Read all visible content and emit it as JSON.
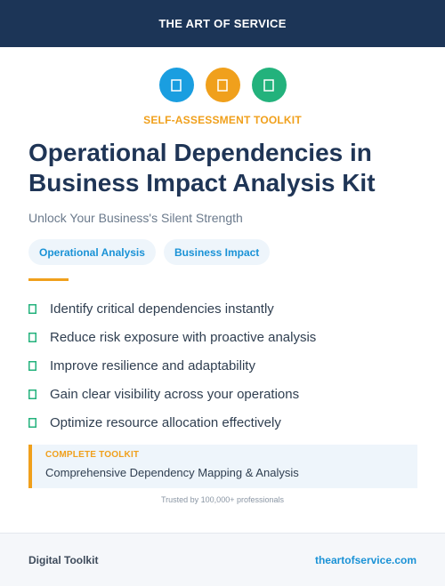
{
  "header": {
    "brand": "THE ART OF SERVICE"
  },
  "icons": [
    {
      "name": "document-icon",
      "color": "#1a9ee0"
    },
    {
      "name": "document-icon",
      "color": "#f0a01c"
    },
    {
      "name": "document-icon",
      "color": "#23b27c"
    }
  ],
  "kicker": "SELF-ASSESSMENT TOOLKIT",
  "title_line1": "Operational Dependencies in",
  "title_line2": "Business Impact Analysis Kit",
  "subtitle": "Unlock Your Business's Silent Strength",
  "tags": [
    "Operational Analysis",
    "Business Impact"
  ],
  "features": [
    "Identify critical dependencies instantly",
    "Reduce risk exposure with proactive analysis",
    "Improve resilience and adaptability",
    "Gain clear visibility across your operations",
    "Optimize resource allocation effectively"
  ],
  "callout": {
    "label": "COMPLETE TOOLKIT",
    "text": "Comprehensive Dependency Mapping & Analysis"
  },
  "trust": "Trusted by 100,000+ professionals",
  "footer": {
    "left": "Digital Toolkit",
    "right": "theartofservice.com"
  },
  "colors": {
    "navy": "#1c3557",
    "accent_orange": "#f0a01c",
    "accent_blue": "#1a92d6",
    "check_green": "#23b27c"
  }
}
